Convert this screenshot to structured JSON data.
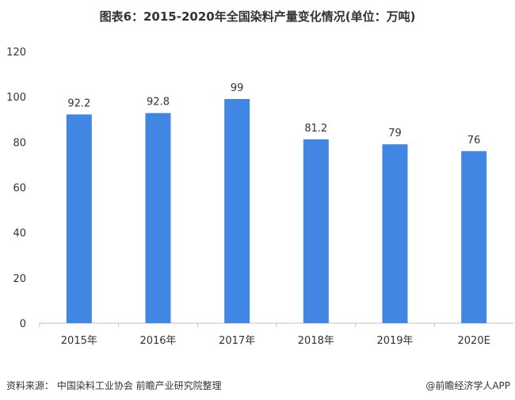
{
  "chart_data": {
    "type": "bar",
    "title": "图表6：2015-2020年全国染料产量变化情况(单位：万吨)",
    "categories": [
      "2015年",
      "2016年",
      "2017年",
      "2018年",
      "2019年",
      "2020E"
    ],
    "values": [
      92.2,
      92.8,
      99,
      81.2,
      79,
      76
    ],
    "value_labels": [
      "92.2",
      "92.8",
      "99",
      "81.2",
      "79",
      "76"
    ],
    "ylim": [
      0,
      120
    ],
    "yticks": [
      0,
      20,
      40,
      60,
      80,
      100,
      120
    ],
    "grid": false,
    "bar_color": "#4286e3"
  },
  "footer": {
    "source": "资料来源：  中国染料工业协会 前瞻产业研究院整理",
    "brand": "@前瞻经济学人APP"
  }
}
